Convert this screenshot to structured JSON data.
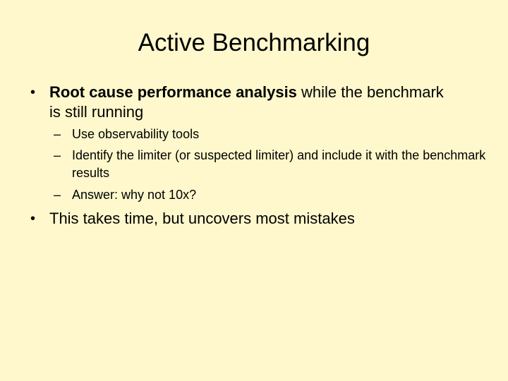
{
  "slide": {
    "title": "Active Benchmarking",
    "bullet_1": {
      "marker": "•",
      "bold_text": "Root cause performance analysis",
      "rest_text": " while the benchmark is still running"
    },
    "sub_bullets": [
      {
        "marker": "–",
        "text": "Use observability tools"
      },
      {
        "marker": "–",
        "text": "Identify the limiter (or suspected limiter) and include it with the benchmark results"
      },
      {
        "marker": "–",
        "text": "Answer: why not 10x?"
      }
    ],
    "bullet_2": {
      "marker": "•",
      "text": "This takes time, but uncovers most mistakes"
    }
  }
}
